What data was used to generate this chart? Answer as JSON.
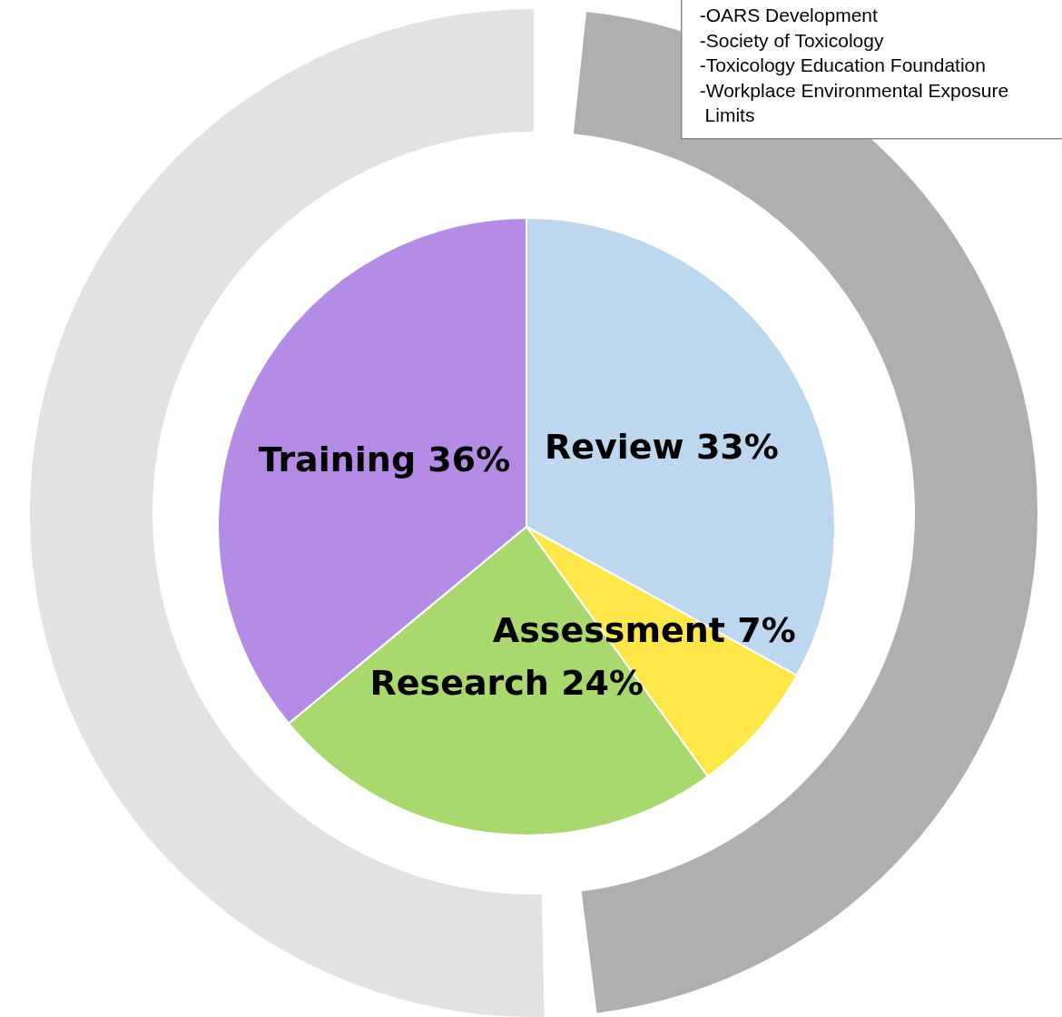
{
  "chart_data": [
    {
      "type": "pie",
      "categories": [
        "Review",
        "Assessment",
        "Research",
        "Training"
      ],
      "values": [
        33,
        7,
        24,
        36
      ],
      "value_labels": [
        "33%",
        "7%",
        "24%",
        "36%"
      ],
      "colors": [
        "#bdd7ee",
        "#ffe74a",
        "#a9d86e",
        "#b48ce6"
      ]
    },
    {
      "type": "donut",
      "categories": [
        null,
        null
      ],
      "values": [
        48,
        52
      ],
      "colors": [
        "#afafaf",
        "#e2e2e2"
      ],
      "annotations": [
        "-OARS Development\n-Society of Toxicology\n-Toxicology Education Foundation\n-Workplace Environmental Exposure\n Limits"
      ]
    }
  ]
}
